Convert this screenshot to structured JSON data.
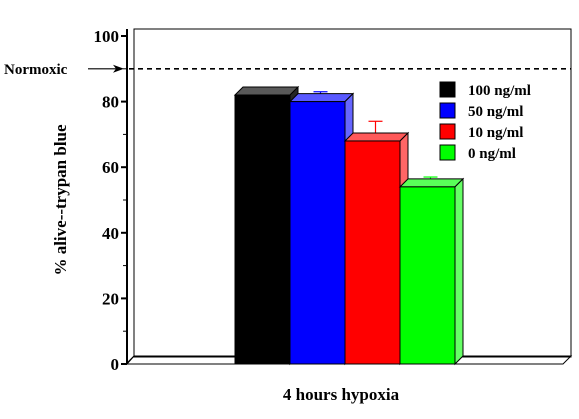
{
  "chart_data": {
    "type": "bar",
    "style": "3d",
    "title": "",
    "xlabel": "4 hours hypoxia",
    "ylabel": "% alive--trypan blue",
    "ylim": [
      0,
      100
    ],
    "yticks": [
      "0",
      "20",
      "40",
      "60",
      "80",
      "100"
    ],
    "grid": false,
    "legend_position": "top-right",
    "categories": [
      "4 hours hypoxia"
    ],
    "series": [
      {
        "name": "100 ng/ml",
        "values": [
          82
        ],
        "error": [
          2
        ],
        "color": "#000000"
      },
      {
        "name": "50 ng/ml",
        "values": [
          80
        ],
        "error": [
          3
        ],
        "color": "#0000ff"
      },
      {
        "name": "10 ng/ml",
        "values": [
          68
        ],
        "error": [
          6
        ],
        "color": "#ff0000"
      },
      {
        "name": "0 ng/ml",
        "values": [
          54
        ],
        "error": [
          3
        ],
        "color": "#00ff00"
      }
    ],
    "reference_line": {
      "label": "Normoxic",
      "value": 90,
      "style": "dashed"
    }
  }
}
